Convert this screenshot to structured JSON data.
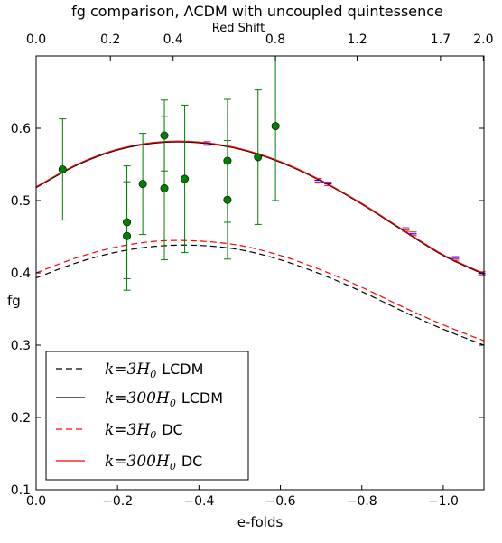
{
  "chart_data": {
    "type": "line",
    "title": "fg comparison, ΛCDM with uncoupled quintessence",
    "xlabel": "e-folds",
    "ylabel": "fg",
    "top_axis_label": "Red Shift",
    "xlim": [
      0.0,
      -1.1
    ],
    "ylim": [
      0.1,
      0.7
    ],
    "x_ticks": [
      0.0,
      -0.2,
      -0.4,
      -0.6,
      -0.8,
      -1.0
    ],
    "x_tick_labels": [
      "0.0",
      "−0.2",
      "−0.4",
      "−0.6",
      "−0.8",
      "−1.0"
    ],
    "y_ticks": [
      0.1,
      0.2,
      0.3,
      0.4,
      0.5,
      0.6
    ],
    "y_tick_labels": [
      "0.1",
      "0.2",
      "0.3",
      "0.4",
      "0.5",
      "0.6"
    ],
    "top_ticks": [
      0.0,
      0.2,
      0.4,
      0.8,
      1.2,
      1.7,
      2.0
    ],
    "top_tick_labels": [
      "0.0",
      "0.2",
      "0.4",
      "0.8",
      "1.2",
      "1.7",
      "2.0"
    ],
    "grid": false,
    "legend_position": "lower-left",
    "series": [
      {
        "name": "k=3H0 LCDM",
        "legend_math": "k=3H",
        "legend_sub": "0",
        "legend_text": "LCDM",
        "color": "#000000",
        "dash": true,
        "x": [
          0.0,
          -0.1,
          -0.2,
          -0.3,
          -0.4,
          -0.5,
          -0.6,
          -0.7,
          -0.8,
          -0.9,
          -1.0,
          -1.1
        ],
        "y": [
          0.393,
          0.414,
          0.429,
          0.437,
          0.438,
          0.432,
          0.418,
          0.398,
          0.374,
          0.347,
          0.322,
          0.3
        ]
      },
      {
        "name": "k=300H0 LCDM",
        "legend_math": "k=300H",
        "legend_sub": "0",
        "legend_text": "LCDM",
        "color": "#000000",
        "dash": false,
        "x": [
          0.0,
          -0.1,
          -0.2,
          -0.3,
          -0.4,
          -0.5,
          -0.6,
          -0.7,
          -0.8,
          -0.9,
          -1.0,
          -1.1
        ],
        "y": [
          0.518,
          0.549,
          0.57,
          0.58,
          0.58,
          0.571,
          0.553,
          0.527,
          0.495,
          0.459,
          0.424,
          0.398
        ]
      },
      {
        "name": "k=3H0 DC",
        "legend_math": "k=3H",
        "legend_sub": "0",
        "legend_text": "DC",
        "color": "#ff0000",
        "dash": true,
        "x": [
          0.0,
          -0.1,
          -0.2,
          -0.3,
          -0.4,
          -0.5,
          -0.6,
          -0.7,
          -0.8,
          -0.9,
          -1.0,
          -1.1
        ],
        "y": [
          0.4,
          0.421,
          0.436,
          0.444,
          0.444,
          0.438,
          0.424,
          0.404,
          0.38,
          0.353,
          0.328,
          0.306
        ]
      },
      {
        "name": "k=300H0 DC",
        "legend_math": "k=300H",
        "legend_sub": "0",
        "legend_text": "DC",
        "color": "#ff0000",
        "dash": false,
        "x": [
          0.0,
          -0.1,
          -0.2,
          -0.3,
          -0.4,
          -0.5,
          -0.6,
          -0.7,
          -0.8,
          -0.9,
          -1.0,
          -1.1
        ],
        "y": [
          0.519,
          0.55,
          0.571,
          0.581,
          0.581,
          0.572,
          0.554,
          0.528,
          0.496,
          0.46,
          0.425,
          0.399
        ]
      }
    ],
    "observations": {
      "color": "#007f00",
      "points": [
        {
          "x": -0.065,
          "y": 0.543,
          "err": 0.07
        },
        {
          "x": -0.223,
          "y": 0.47,
          "err": 0.078
        },
        {
          "x": -0.223,
          "y": 0.451,
          "err": 0.075
        },
        {
          "x": -0.262,
          "y": 0.523,
          "err": 0.07
        },
        {
          "x": -0.315,
          "y": 0.59,
          "err": 0.049
        },
        {
          "x": -0.315,
          "y": 0.517,
          "err": 0.099
        },
        {
          "x": -0.365,
          "y": 0.53,
          "err": 0.102
        },
        {
          "x": -0.47,
          "y": 0.555,
          "err": 0.085
        },
        {
          "x": -0.47,
          "y": 0.501,
          "err": 0.082
        },
        {
          "x": -0.545,
          "y": 0.56,
          "err": 0.093
        },
        {
          "x": -0.588,
          "y": 0.603,
          "err": 0.103
        }
      ]
    },
    "forecast_markers": {
      "color": "#0000ff",
      "cap_color": "#ff0000",
      "points": [
        {
          "x": -0.42,
          "y": 0.579
        },
        {
          "x": -0.693,
          "y": 0.528
        },
        {
          "x": -0.717,
          "y": 0.523
        },
        {
          "x": -0.908,
          "y": 0.46
        },
        {
          "x": -0.926,
          "y": 0.454
        },
        {
          "x": -1.03,
          "y": 0.42
        },
        {
          "x": -1.095,
          "y": 0.399
        }
      ]
    }
  }
}
